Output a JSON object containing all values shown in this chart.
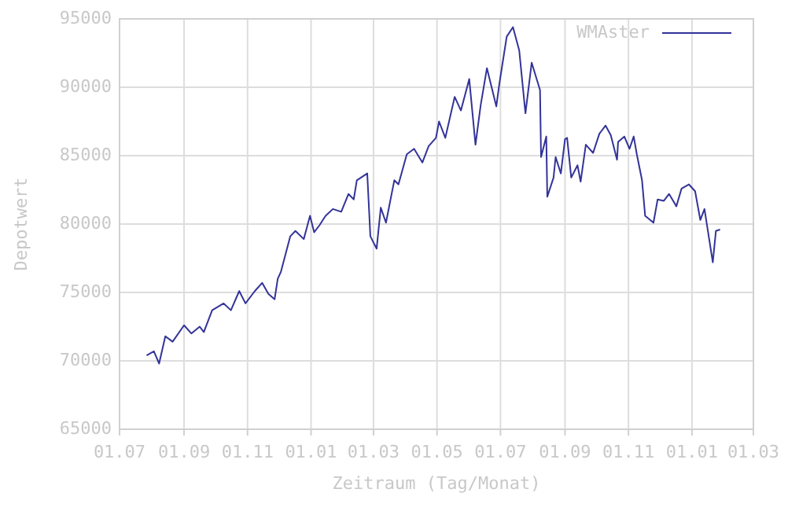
{
  "chart_data": {
    "type": "line",
    "xlabel": "Zeitraum (Tag/Monat)",
    "ylabel": "Depotwert",
    "grid": true,
    "legend": "top right",
    "line_style": "solid",
    "marker": "none",
    "xlim": [
      "2007-07-01",
      "2009-03-01"
    ],
    "xticks": [
      {
        "value": "2007-07-01",
        "label": "01.07"
      },
      {
        "value": "2007-09-01",
        "label": "01.09"
      },
      {
        "value": "2007-11-01",
        "label": "01.11"
      },
      {
        "value": "2008-01-01",
        "label": "01.01"
      },
      {
        "value": "2008-03-01",
        "label": "01.03"
      },
      {
        "value": "2008-05-01",
        "label": "01.05"
      },
      {
        "value": "2008-07-01",
        "label": "01.07"
      },
      {
        "value": "2008-09-01",
        "label": "01.09"
      },
      {
        "value": "2008-11-01",
        "label": "01.11"
      },
      {
        "value": "2009-01-01",
        "label": "01.01"
      },
      {
        "value": "2009-03-01",
        "label": "01.03"
      }
    ],
    "ylim": [
      65000,
      95000
    ],
    "yticks": [
      65000,
      70000,
      75000,
      80000,
      85000,
      90000,
      95000
    ],
    "x": [
      "2007-07-27",
      "2007-08-03",
      "2007-08-08",
      "2007-08-14",
      "2007-08-21",
      "2007-09-01",
      "2007-09-08",
      "2007-09-16",
      "2007-09-20",
      "2007-09-28",
      "2007-10-09",
      "2007-10-16",
      "2007-10-24",
      "2007-10-30",
      "2007-11-08",
      "2007-11-15",
      "2007-11-21",
      "2007-11-27",
      "2007-11-30",
      "2007-12-03",
      "2007-12-12",
      "2007-12-17",
      "2007-12-25",
      "2007-12-31",
      "2008-01-04",
      "2008-01-09",
      "2008-01-15",
      "2008-01-22",
      "2008-01-30",
      "2008-02-06",
      "2008-02-11",
      "2008-02-14",
      "2008-02-24",
      "2008-02-27",
      "2008-03-04",
      "2008-03-08",
      "2008-03-13",
      "2008-03-21",
      "2008-03-25",
      "2008-04-02",
      "2008-04-09",
      "2008-04-17",
      "2008-04-23",
      "2008-04-30",
      "2008-05-03",
      "2008-05-09",
      "2008-05-18",
      "2008-05-24",
      "2008-06-01",
      "2008-06-07",
      "2008-06-12",
      "2008-06-18",
      "2008-06-27",
      "2008-06-30",
      "2008-07-07",
      "2008-07-13",
      "2008-07-19",
      "2008-07-25",
      "2008-07-31",
      "2008-08-08",
      "2008-08-09",
      "2008-08-14",
      "2008-08-15",
      "2008-08-21",
      "2008-08-23",
      "2008-08-28",
      "2008-09-01",
      "2008-09-03",
      "2008-09-07",
      "2008-09-13",
      "2008-09-16",
      "2008-09-21",
      "2008-09-28",
      "2008-10-04",
      "2008-10-10",
      "2008-10-15",
      "2008-10-21",
      "2008-10-22",
      "2008-10-28",
      "2008-11-02",
      "2008-11-06",
      "2008-11-09",
      "2008-11-14",
      "2008-11-17",
      "2008-11-25",
      "2008-11-29",
      "2008-12-05",
      "2008-12-10",
      "2008-12-17",
      "2008-12-22",
      "2008-12-29",
      "2009-01-04",
      "2009-01-09",
      "2009-01-13",
      "2009-01-21",
      "2009-01-24",
      "2009-01-28"
    ],
    "series": [
      {
        "name": "WMAster",
        "color": "#333399",
        "values": [
          70400,
          70700,
          69800,
          71800,
          71400,
          72600,
          72000,
          72500,
          72100,
          73700,
          74200,
          73700,
          75100,
          74200,
          75100,
          75700,
          74900,
          74500,
          76000,
          76500,
          79100,
          79500,
          78900,
          80600,
          79400,
          79900,
          80600,
          81100,
          80900,
          82200,
          81800,
          83200,
          83700,
          79100,
          78200,
          81200,
          80100,
          83200,
          82900,
          85100,
          85500,
          84500,
          85700,
          86300,
          87500,
          86300,
          89300,
          88300,
          90600,
          85800,
          88700,
          91400,
          88600,
          90300,
          93700,
          94400,
          92700,
          88100,
          91800,
          89800,
          84900,
          86400,
          82000,
          83400,
          84900,
          83700,
          86200,
          86300,
          83400,
          84300,
          83100,
          85800,
          85200,
          86600,
          87200,
          86500,
          84700,
          86000,
          86400,
          85500,
          86400,
          85100,
          83200,
          80600,
          80100,
          81800,
          81700,
          82200,
          81300,
          82600,
          82900,
          82400,
          80300,
          81100,
          77200,
          79500,
          79600
        ]
      }
    ]
  }
}
